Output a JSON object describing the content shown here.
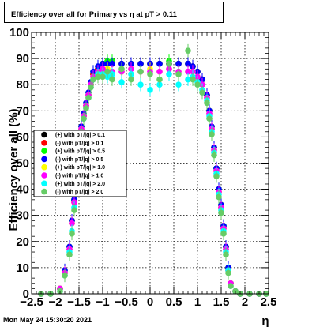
{
  "title": "Efficiency over all for Primary vs   η at pT > 0.11",
  "timestamp": "Mon May 24 15:30:20 2021",
  "chart_data": {
    "type": "scatter",
    "title": "Efficiency over all for Primary vs   η at pT > 0.11",
    "xlabel": "η",
    "ylabel": "Efficiency over all (%)",
    "xlim": [
      -2.5,
      2.5
    ],
    "ylim": [
      0,
      100
    ],
    "x_ticks": [
      "−2.5",
      "−2",
      "−1.5",
      "−1",
      "−0.5",
      "0",
      "0.5",
      "1",
      "1.5",
      "2",
      "2.5"
    ],
    "y_ticks": [
      "0",
      "10",
      "20",
      "30",
      "40",
      "50",
      "60",
      "70",
      "80",
      "90",
      "100"
    ],
    "grid": true,
    "legend_position": "left-middle",
    "x": [
      -2.3,
      -2.1,
      -1.9,
      -1.8,
      -1.7,
      -1.65,
      -1.6,
      -1.55,
      -1.5,
      -1.45,
      -1.4,
      -1.35,
      -1.3,
      -1.25,
      -1.2,
      -1.1,
      -1.0,
      -0.9,
      -0.8,
      -0.6,
      -0.4,
      -0.2,
      0.0,
      0.2,
      0.4,
      0.6,
      0.8,
      0.9,
      1.0,
      1.1,
      1.2,
      1.25,
      1.3,
      1.35,
      1.4,
      1.45,
      1.5,
      1.55,
      1.6,
      1.65,
      1.7,
      1.8,
      1.9,
      2.1,
      2.3,
      2.45
    ],
    "series": [
      {
        "name": "(+) with pT/|q| > 0.1",
        "color": "#000000",
        "values": [
          0,
          0,
          2,
          8,
          18,
          28,
          36,
          50,
          58,
          64,
          68,
          72,
          76,
          80,
          84,
          86,
          88,
          88,
          88,
          88,
          88,
          88,
          88,
          88,
          88,
          88,
          88,
          87,
          85,
          82,
          76,
          70,
          64,
          56,
          48,
          40,
          34,
          26,
          18,
          10,
          4,
          1,
          0,
          0,
          0,
          0
        ]
      },
      {
        "name": "(-) with pT/|q| > 0.1",
        "color": "#ff0000",
        "values": [
          0,
          0,
          2,
          8,
          17,
          27,
          35,
          49,
          57,
          63,
          68,
          72,
          76,
          80,
          84,
          86,
          88,
          88,
          88,
          88,
          88,
          88,
          88,
          88,
          88,
          88,
          88,
          87,
          85,
          82,
          76,
          70,
          63,
          56,
          47,
          39,
          33,
          25,
          17,
          9,
          4,
          1,
          0,
          0,
          0,
          0
        ]
      },
      {
        "name": "(+) with pT/|q| > 0.5",
        "color": "#00ff00",
        "values": [
          0,
          0,
          2,
          9,
          18,
          28,
          36,
          50,
          58,
          64,
          69,
          73,
          77,
          81,
          85,
          87,
          88,
          89,
          89,
          88,
          88,
          88,
          88,
          88,
          89,
          88,
          88,
          87,
          85,
          82,
          76,
          70,
          64,
          56,
          48,
          40,
          34,
          26,
          18,
          10,
          4,
          1,
          0,
          0,
          0,
          0
        ]
      },
      {
        "name": "(-) with pT/|q| > 0.5",
        "color": "#0000ff",
        "values": [
          0,
          0,
          2,
          9,
          18,
          28,
          36,
          50,
          58,
          64,
          69,
          73,
          77,
          81,
          85,
          87,
          88,
          88,
          88,
          88,
          88,
          88,
          88,
          88,
          88,
          88,
          88,
          87,
          85,
          82,
          76,
          70,
          64,
          56,
          48,
          40,
          34,
          26,
          18,
          10,
          4,
          1,
          0,
          0,
          0,
          0
        ]
      },
      {
        "name": "(+) with pT/|q| > 1.0",
        "color": "#ffff00",
        "values": [
          0,
          0,
          2,
          8,
          17,
          27,
          35,
          49,
          57,
          63,
          68,
          72,
          76,
          80,
          83,
          85,
          86,
          86,
          85,
          85,
          86,
          85,
          86,
          85,
          86,
          85,
          85,
          85,
          83,
          80,
          75,
          69,
          63,
          55,
          47,
          39,
          33,
          25,
          17,
          9,
          4,
          1,
          0,
          0,
          0,
          0
        ]
      },
      {
        "name": "(-) with pT/|q| > 1.0",
        "color": "#ff00ff",
        "values": [
          0,
          0,
          2,
          8,
          17,
          27,
          35,
          49,
          57,
          63,
          68,
          72,
          76,
          80,
          83,
          85,
          86,
          85,
          85,
          85,
          86,
          85,
          85,
          85,
          86,
          85,
          85,
          85,
          83,
          80,
          75,
          69,
          63,
          55,
          47,
          39,
          33,
          25,
          17,
          9,
          4,
          1,
          0,
          0,
          0,
          0
        ]
      },
      {
        "name": "(+) with pT/|q| > 2.0",
        "color": "#00ffff",
        "values": [
          0,
          0,
          1,
          7,
          16,
          24,
          33,
          47,
          56,
          62,
          67,
          71,
          75,
          79,
          82,
          84,
          84,
          83,
          84,
          81,
          84,
          80,
          78,
          80,
          84,
          80,
          82,
          83,
          81,
          78,
          74,
          68,
          62,
          54,
          46,
          38,
          32,
          24,
          16,
          9,
          3,
          1,
          0,
          0,
          0,
          0
        ]
      },
      {
        "name": "(-) with pT/|q| > 2.0",
        "color": "#66cc66",
        "values": [
          0,
          0,
          1,
          7,
          15,
          23,
          32,
          46,
          55,
          62,
          67,
          71,
          75,
          79,
          82,
          83,
          83,
          85,
          82,
          86,
          82,
          85,
          84,
          82,
          88,
          84,
          93,
          82,
          80,
          77,
          73,
          67,
          61,
          53,
          45,
          37,
          31,
          23,
          15,
          8,
          3,
          1,
          0,
          0,
          0,
          0
        ]
      }
    ]
  }
}
